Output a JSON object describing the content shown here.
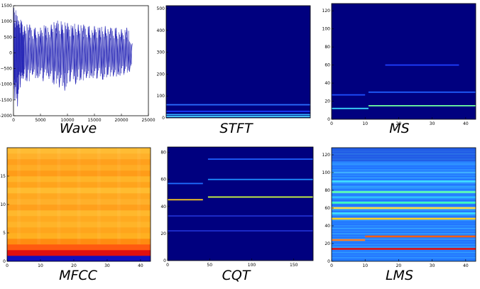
{
  "chart_data": [
    {
      "id": "wave",
      "type": "line",
      "title": "Wave",
      "xlim": [
        0,
        25000
      ],
      "ylim": [
        -2000,
        1500
      ],
      "xticks": [
        0,
        5000,
        10000,
        15000,
        20000,
        25000
      ],
      "yticks": [
        -2000,
        -1500,
        -1000,
        -500,
        0,
        500,
        1000,
        1500
      ],
      "xtick_labels": [
        "0",
        "5000",
        "10000",
        "15000",
        "20000",
        "25000"
      ],
      "ytick_labels": [
        "−2000",
        "−1500",
        "−1000",
        "−500",
        "0",
        "500",
        "1000",
        "1500"
      ],
      "series": [
        {
          "color": "#1f1fb4",
          "x": [
            0,
            250,
            500,
            750,
            1000,
            1250,
            1500,
            1750,
            2000,
            2500,
            3000,
            3500,
            4000,
            4500,
            5000,
            5500,
            6000,
            6500,
            7000,
            7500,
            8000,
            8500,
            9000,
            9500,
            10000,
            10500,
            11000,
            11500,
            12000,
            12500,
            13000,
            13500,
            14000,
            14500,
            15000,
            15500,
            16000,
            16500,
            17000,
            17500,
            18000,
            18500,
            19000,
            19500,
            20000,
            20500,
            21000,
            21500,
            22000
          ],
          "y": [
            1350,
            -1500,
            1200,
            -1700,
            900,
            -1100,
            1000,
            -800,
            850,
            -900,
            900,
            -700,
            800,
            -800,
            700,
            -900,
            850,
            -750,
            900,
            -1000,
            950,
            -1100,
            900,
            -1200,
            950,
            -900,
            850,
            -1000,
            900,
            -850,
            900,
            -800,
            850,
            -750,
            850,
            -800,
            800,
            -850,
            850,
            -700,
            800,
            -750,
            800,
            -700,
            750,
            -650,
            800,
            -600,
            300
          ]
        }
      ]
    },
    {
      "id": "stft",
      "type": "heatmap",
      "title": "STFT",
      "xlim": [
        0,
        173
      ],
      "ylim": [
        0,
        513
      ],
      "xticks": [],
      "yticks": [
        0,
        100,
        200,
        300,
        400,
        500
      ],
      "xtick_labels": [],
      "ytick_labels": [
        "0",
        "100",
        "200",
        "300",
        "400",
        "500"
      ],
      "background": "#00007f",
      "bands": [
        {
          "y": 60,
          "x0": 0,
          "x1": 173,
          "color": "#2a6fff"
        },
        {
          "y": 30,
          "x0": 0,
          "x1": 173,
          "color": "#1f3fff"
        },
        {
          "y": 15,
          "x0": 0,
          "x1": 173,
          "color": "#34b4ff"
        },
        {
          "y": 6,
          "x0": 0,
          "x1": 173,
          "color": "#4fd8ff"
        }
      ]
    },
    {
      "id": "ms",
      "type": "heatmap",
      "title": "MS",
      "xlim": [
        0,
        43
      ],
      "ylim": [
        0,
        128
      ],
      "xticks": [
        0,
        10,
        20,
        30,
        40
      ],
      "yticks": [
        0,
        20,
        40,
        60,
        80,
        100,
        120
      ],
      "xtick_labels": [
        "0",
        "10",
        "20",
        "30",
        "40"
      ],
      "ytick_labels": [
        "0",
        "20",
        "40",
        "60",
        "80",
        "100",
        "120"
      ],
      "background": "#00007f",
      "bands": [
        {
          "y": 60,
          "x0": 16,
          "x1": 38,
          "color": "#1f3fff"
        },
        {
          "y": 30,
          "x0": 11,
          "x1": 43,
          "color": "#1f5fff"
        },
        {
          "y": 27,
          "x0": 0,
          "x1": 10,
          "color": "#1f4fff"
        },
        {
          "y": 15,
          "x0": 11,
          "x1": 43,
          "color": "#6fffa0"
        },
        {
          "y": 12,
          "x0": 0,
          "x1": 11,
          "color": "#3fdfff"
        }
      ]
    },
    {
      "id": "mfcc",
      "type": "heatmap",
      "title": "MFCC",
      "xlim": [
        0,
        43
      ],
      "ylim": [
        0,
        20
      ],
      "xticks": [
        0,
        10,
        20,
        30,
        40
      ],
      "yticks": [
        0,
        5,
        10,
        15
      ],
      "xtick_labels": [
        "0",
        "10",
        "20",
        "30",
        "40"
      ],
      "ytick_labels": [
        "0",
        "5",
        "10",
        "15"
      ],
      "rows": [
        {
          "y": 0,
          "color": "#1010c0"
        },
        {
          "y": 1,
          "color": "#e01010"
        },
        {
          "y": 2,
          "color": "#ff5a10"
        },
        {
          "y": 3,
          "color": "#ff8c10"
        },
        {
          "y": 4,
          "color": "#ffb020"
        },
        {
          "y": 5,
          "color": "#ffa51c"
        },
        {
          "y": 6,
          "color": "#ffb428"
        },
        {
          "y": 7,
          "color": "#ffaa20"
        },
        {
          "y": 8,
          "color": "#ffb82c"
        },
        {
          "y": 9,
          "color": "#ffa01c"
        },
        {
          "y": 10,
          "color": "#ffb02a"
        },
        {
          "y": 11,
          "color": "#ffa820"
        },
        {
          "y": 12,
          "color": "#ffbc30"
        },
        {
          "y": 13,
          "color": "#ffa41c"
        },
        {
          "y": 14,
          "color": "#ffb428"
        },
        {
          "y": 15,
          "color": "#ff9c18"
        },
        {
          "y": 16,
          "color": "#ffac24"
        },
        {
          "y": 17,
          "color": "#ffa01c"
        },
        {
          "y": 18,
          "color": "#ffb02a"
        },
        {
          "y": 19,
          "color": "#ffbc34"
        }
      ]
    },
    {
      "id": "cqt",
      "type": "heatmap",
      "title": "CQT",
      "xlim": [
        0,
        173
      ],
      "ylim": [
        0,
        84
      ],
      "xticks": [
        0,
        50,
        100,
        150
      ],
      "yticks": [
        0,
        20,
        40,
        60,
        80
      ],
      "xtick_labels": [
        "0",
        "50",
        "100",
        "150"
      ],
      "ytick_labels": [
        "0",
        "20",
        "40",
        "60",
        "80"
      ],
      "background": "#00007f",
      "bands": [
        {
          "y": 75,
          "x0": 48,
          "x1": 173,
          "color": "#1f5fff"
        },
        {
          "y": 60,
          "x0": 48,
          "x1": 173,
          "color": "#1f8fff"
        },
        {
          "y": 57,
          "x0": 0,
          "x1": 42,
          "color": "#1f6fff"
        },
        {
          "y": 47,
          "x0": 48,
          "x1": 173,
          "color": "#d0ff40"
        },
        {
          "y": 45,
          "x0": 0,
          "x1": 42,
          "color": "#ffd020"
        },
        {
          "y": 33,
          "x0": 0,
          "x1": 173,
          "color": "#1f2fcf"
        },
        {
          "y": 22,
          "x0": 0,
          "x1": 173,
          "color": "#1f2fcf"
        }
      ]
    },
    {
      "id": "lms",
      "type": "heatmap",
      "title": "LMS",
      "xlim": [
        0,
        43
      ],
      "ylim": [
        0,
        128
      ],
      "xticks": [
        0,
        10,
        20,
        30,
        40
      ],
      "yticks": [
        0,
        20,
        40,
        60,
        80,
        100,
        120
      ],
      "xtick_labels": [
        "0",
        "10",
        "20",
        "30",
        "40"
      ],
      "ytick_labels": [
        "0",
        "20",
        "40",
        "60",
        "80",
        "100",
        "120"
      ],
      "background": "#1f6fff",
      "bands": [
        {
          "y": 14,
          "x0": 0,
          "x1": 43,
          "color": "#e01010"
        },
        {
          "y": 28,
          "x0": 10,
          "x1": 43,
          "color": "#ff6010"
        },
        {
          "y": 24,
          "x0": 0,
          "x1": 10,
          "color": "#ff8020"
        },
        {
          "y": 48,
          "x0": 0,
          "x1": 43,
          "color": "#ffd020"
        },
        {
          "y": 54,
          "x0": 0,
          "x1": 43,
          "color": "#40e0ff"
        },
        {
          "y": 60,
          "x0": 0,
          "x1": 43,
          "color": "#ffe040"
        },
        {
          "y": 66,
          "x0": 0,
          "x1": 43,
          "color": "#40ffc0"
        },
        {
          "y": 72,
          "x0": 0,
          "x1": 43,
          "color": "#2fbfff"
        },
        {
          "y": 78,
          "x0": 0,
          "x1": 43,
          "color": "#60ffb0"
        },
        {
          "y": 84,
          "x0": 0,
          "x1": 43,
          "color": "#2f9fff"
        },
        {
          "y": 90,
          "x0": 0,
          "x1": 43,
          "color": "#40dfff"
        },
        {
          "y": 100,
          "x0": 0,
          "x1": 43,
          "color": "#3fafff"
        },
        {
          "y": 110,
          "x0": 0,
          "x1": 43,
          "color": "#2f8fff"
        }
      ]
    }
  ]
}
